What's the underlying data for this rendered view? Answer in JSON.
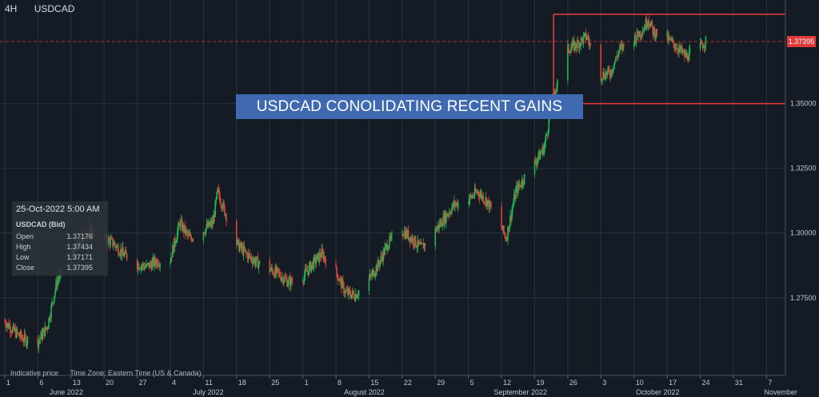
{
  "header": {
    "timeframe": "4H",
    "symbol": "USDCAD"
  },
  "annotation": {
    "banner_text": "USDCAD CONOLIDATING RECENT GAINS"
  },
  "infobox": {
    "datetime": "25-Oct-2022 5:00 AM",
    "symbol_label": "USDCAD (Bid)",
    "rows": [
      {
        "label": "Open",
        "value": "1.37176"
      },
      {
        "label": "High",
        "value": "1.37434"
      },
      {
        "label": "Low",
        "value": "1.37171"
      },
      {
        "label": "Close",
        "value": "1.37395"
      }
    ]
  },
  "footer": {
    "price_note": "Indicative price",
    "timezone": "Time Zone: Eastern Time (US & Canada)"
  },
  "colors": {
    "background": "#151b24",
    "grid": "#2a323e",
    "up": "#1db954",
    "down": "#e0453a",
    "box": "#e23a3a",
    "banner": "#3f6ab1"
  },
  "chart_data": {
    "type": "candlestick",
    "title": "",
    "current_price": 1.37395,
    "current_price_label": "1.37395",
    "ylim": [
      1.245,
      1.39
    ],
    "y_ticks": [
      1.275,
      1.3,
      1.325,
      1.35
    ],
    "y_tick_labels": [
      "1.27500",
      "1.30000",
      "1.32500",
      "1.35000"
    ],
    "x_ticks": [
      {
        "date": "2022-05-30",
        "label": "1"
      },
      {
        "date": "2022-06-06",
        "label": "6"
      },
      {
        "date": "2022-06-13",
        "label": "13"
      },
      {
        "date": "2022-06-20",
        "label": "20"
      },
      {
        "date": "2022-06-27",
        "label": "27"
      },
      {
        "date": "2022-07-04",
        "label": "4"
      },
      {
        "date": "2022-07-11",
        "label": "11"
      },
      {
        "date": "2022-07-18",
        "label": "18"
      },
      {
        "date": "2022-07-25",
        "label": "25"
      },
      {
        "date": "2022-08-01",
        "label": "1"
      },
      {
        "date": "2022-08-08",
        "label": "8"
      },
      {
        "date": "2022-08-15",
        "label": "15"
      },
      {
        "date": "2022-08-22",
        "label": "22"
      },
      {
        "date": "2022-08-29",
        "label": "29"
      },
      {
        "date": "2022-09-05",
        "label": "5"
      },
      {
        "date": "2022-09-12",
        "label": "12"
      },
      {
        "date": "2022-09-19",
        "label": "19"
      },
      {
        "date": "2022-09-26",
        "label": "26"
      },
      {
        "date": "2022-10-03",
        "label": "3"
      },
      {
        "date": "2022-10-10",
        "label": "10"
      },
      {
        "date": "2022-10-17",
        "label": "17"
      },
      {
        "date": "2022-10-24",
        "label": "24"
      },
      {
        "date": "2022-10-31",
        "label": "31"
      },
      {
        "date": "2022-11-07",
        "label": "7"
      }
    ],
    "month_labels": [
      {
        "date": "2022-06-12",
        "label": "June 2022"
      },
      {
        "date": "2022-07-12",
        "label": "July 2022"
      },
      {
        "date": "2022-08-14",
        "label": "August 2022"
      },
      {
        "date": "2022-09-16",
        "label": "September 2022"
      },
      {
        "date": "2022-10-15",
        "label": "October 2022"
      },
      {
        "date": "2022-11-10",
        "label": "November"
      }
    ],
    "consolidation_box": {
      "date_start": "2022-09-23",
      "price_top": 1.3845,
      "price_bottom": 1.35
    },
    "daily_closes": [
      {
        "date": "2022-05-30",
        "value": 1.266
      },
      {
        "date": "2022-06-01",
        "value": 1.262
      },
      {
        "date": "2022-06-03",
        "value": 1.259
      },
      {
        "date": "2022-06-06",
        "value": 1.258
      },
      {
        "date": "2022-06-08",
        "value": 1.264
      },
      {
        "date": "2022-06-10",
        "value": 1.281
      },
      {
        "date": "2022-06-13",
        "value": 1.291
      },
      {
        "date": "2022-06-15",
        "value": 1.297
      },
      {
        "date": "2022-06-17",
        "value": 1.301
      },
      {
        "date": "2022-06-20",
        "value": 1.298
      },
      {
        "date": "2022-06-22",
        "value": 1.296
      },
      {
        "date": "2022-06-24",
        "value": 1.292
      },
      {
        "date": "2022-06-27",
        "value": 1.288
      },
      {
        "date": "2022-06-29",
        "value": 1.287
      },
      {
        "date": "2022-07-01",
        "value": 1.289
      },
      {
        "date": "2022-07-04",
        "value": 1.29
      },
      {
        "date": "2022-07-06",
        "value": 1.304
      },
      {
        "date": "2022-07-08",
        "value": 1.298
      },
      {
        "date": "2022-07-11",
        "value": 1.301
      },
      {
        "date": "2022-07-13",
        "value": 1.304
      },
      {
        "date": "2022-07-14",
        "value": 1.316
      },
      {
        "date": "2022-07-16",
        "value": 1.306
      },
      {
        "date": "2022-07-18",
        "value": 1.296
      },
      {
        "date": "2022-07-20",
        "value": 1.292
      },
      {
        "date": "2022-07-22",
        "value": 1.289
      },
      {
        "date": "2022-07-25",
        "value": 1.286
      },
      {
        "date": "2022-07-27",
        "value": 1.284
      },
      {
        "date": "2022-07-29",
        "value": 1.281
      },
      {
        "date": "2022-08-01",
        "value": 1.283
      },
      {
        "date": "2022-08-03",
        "value": 1.288
      },
      {
        "date": "2022-08-05",
        "value": 1.292
      },
      {
        "date": "2022-08-08",
        "value": 1.285
      },
      {
        "date": "2022-08-10",
        "value": 1.277
      },
      {
        "date": "2022-08-12",
        "value": 1.276
      },
      {
        "date": "2022-08-15",
        "value": 1.282
      },
      {
        "date": "2022-08-17",
        "value": 1.288
      },
      {
        "date": "2022-08-19",
        "value": 1.296
      },
      {
        "date": "2022-08-22",
        "value": 1.301
      },
      {
        "date": "2022-08-24",
        "value": 1.298
      },
      {
        "date": "2022-08-26",
        "value": 1.294
      },
      {
        "date": "2022-08-29",
        "value": 1.301
      },
      {
        "date": "2022-08-31",
        "value": 1.306
      },
      {
        "date": "2022-09-02",
        "value": 1.311
      },
      {
        "date": "2022-09-05",
        "value": 1.313
      },
      {
        "date": "2022-09-07",
        "value": 1.316
      },
      {
        "date": "2022-09-09",
        "value": 1.312
      },
      {
        "date": "2022-09-12",
        "value": 1.302
      },
      {
        "date": "2022-09-13",
        "value": 1.298
      },
      {
        "date": "2022-09-15",
        "value": 1.316
      },
      {
        "date": "2022-09-17",
        "value": 1.322
      },
      {
        "date": "2022-09-19",
        "value": 1.327
      },
      {
        "date": "2022-09-21",
        "value": 1.333
      },
      {
        "date": "2022-09-23",
        "value": 1.353
      },
      {
        "date": "2022-09-26",
        "value": 1.371
      },
      {
        "date": "2022-09-28",
        "value": 1.373
      },
      {
        "date": "2022-09-30",
        "value": 1.376
      },
      {
        "date": "2022-10-03",
        "value": 1.361
      },
      {
        "date": "2022-10-05",
        "value": 1.362
      },
      {
        "date": "2022-10-07",
        "value": 1.371
      },
      {
        "date": "2022-10-10",
        "value": 1.375
      },
      {
        "date": "2022-10-12",
        "value": 1.379
      },
      {
        "date": "2022-10-13",
        "value": 1.383
      },
      {
        "date": "2022-10-14",
        "value": 1.378
      },
      {
        "date": "2022-10-17",
        "value": 1.375
      },
      {
        "date": "2022-10-19",
        "value": 1.372
      },
      {
        "date": "2022-10-21",
        "value": 1.368
      },
      {
        "date": "2022-10-24",
        "value": 1.372
      },
      {
        "date": "2022-10-25",
        "value": 1.37395
      }
    ]
  }
}
